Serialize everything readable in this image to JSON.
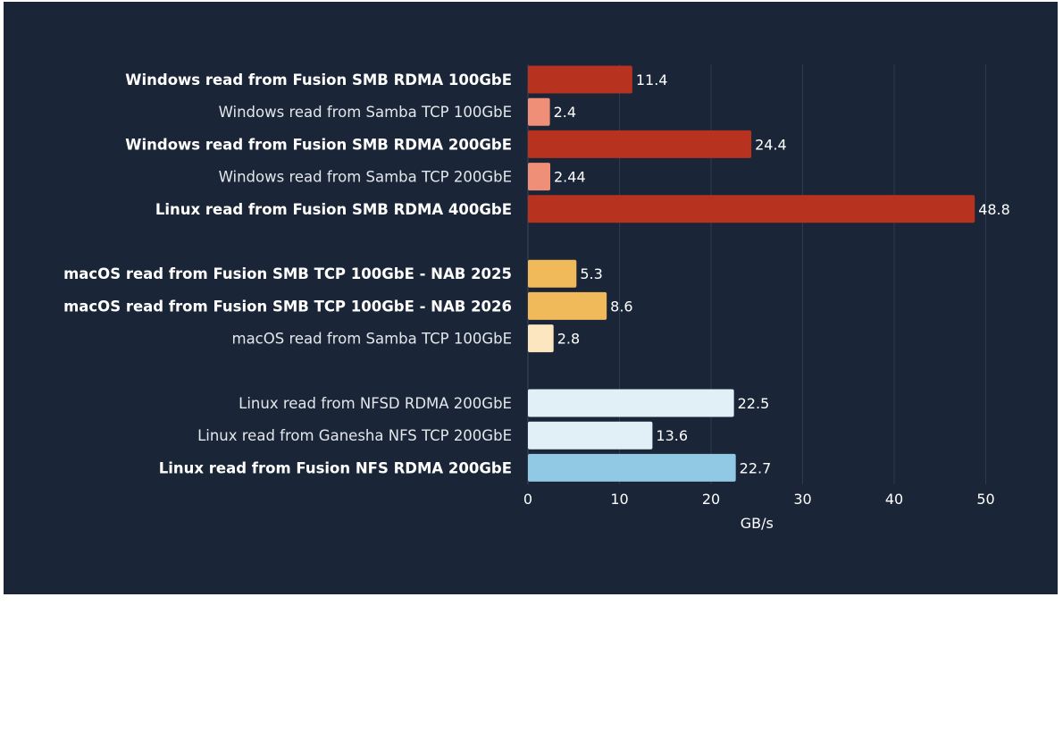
{
  "chart_data": {
    "type": "bar",
    "orientation": "horizontal",
    "title": "",
    "xlabel": "GB/s",
    "ylabel": "",
    "xlim": [
      0,
      50
    ],
    "xticks": [
      0,
      10,
      20,
      30,
      40,
      50
    ],
    "grid": "vertical",
    "groups": [
      {
        "bars": [
          {
            "label": "Windows read from Fusion SMB RDMA 100GbE",
            "value": 11.4,
            "value_label": "11.4",
            "bold": true,
            "color": "#b83220"
          },
          {
            "label": "Windows read from Samba TCP 100GbE",
            "value": 2.4,
            "value_label": "2.4",
            "bold": false,
            "color": "#ef8f78"
          },
          {
            "label": "Windows read from Fusion SMB RDMA 200GbE",
            "value": 24.4,
            "value_label": "24.4",
            "bold": true,
            "color": "#b83220"
          },
          {
            "label": "Windows read from Samba TCP 200GbE",
            "value": 2.44,
            "value_label": "2.44",
            "bold": false,
            "color": "#ef8f78"
          },
          {
            "label": "Linux read from Fusion SMB RDMA 400GbE",
            "value": 48.8,
            "value_label": "48.8",
            "bold": true,
            "color": "#b83220"
          }
        ]
      },
      {
        "bars": [
          {
            "label": "macOS read from Fusion SMB TCP 100GbE - NAB 2025",
            "value": 5.3,
            "value_label": "5.3",
            "bold": true,
            "color": "#f0b95a"
          },
          {
            "label": "macOS read from Fusion SMB TCP 100GbE - NAB 2026",
            "value": 8.6,
            "value_label": "8.6",
            "bold": true,
            "color": "#f0b95a"
          },
          {
            "label": "macOS read from Samba TCP 100GbE",
            "value": 2.8,
            "value_label": "2.8",
            "bold": false,
            "color": "#fbe6c0"
          }
        ]
      },
      {
        "bars": [
          {
            "label": "Linux read from NFSD RDMA 200GbE",
            "value": 22.5,
            "value_label": "22.5",
            "bold": false,
            "color": "#e1f0f6"
          },
          {
            "label": "Linux read from Ganesha NFS TCP 200GbE",
            "value": 13.6,
            "value_label": "13.6",
            "bold": false,
            "color": "#e1f0f6"
          },
          {
            "label": "Linux read from Fusion NFS RDMA 200GbE",
            "value": 22.7,
            "value_label": "22.7",
            "bold": true,
            "color": "#91c8e3"
          }
        ]
      }
    ]
  }
}
